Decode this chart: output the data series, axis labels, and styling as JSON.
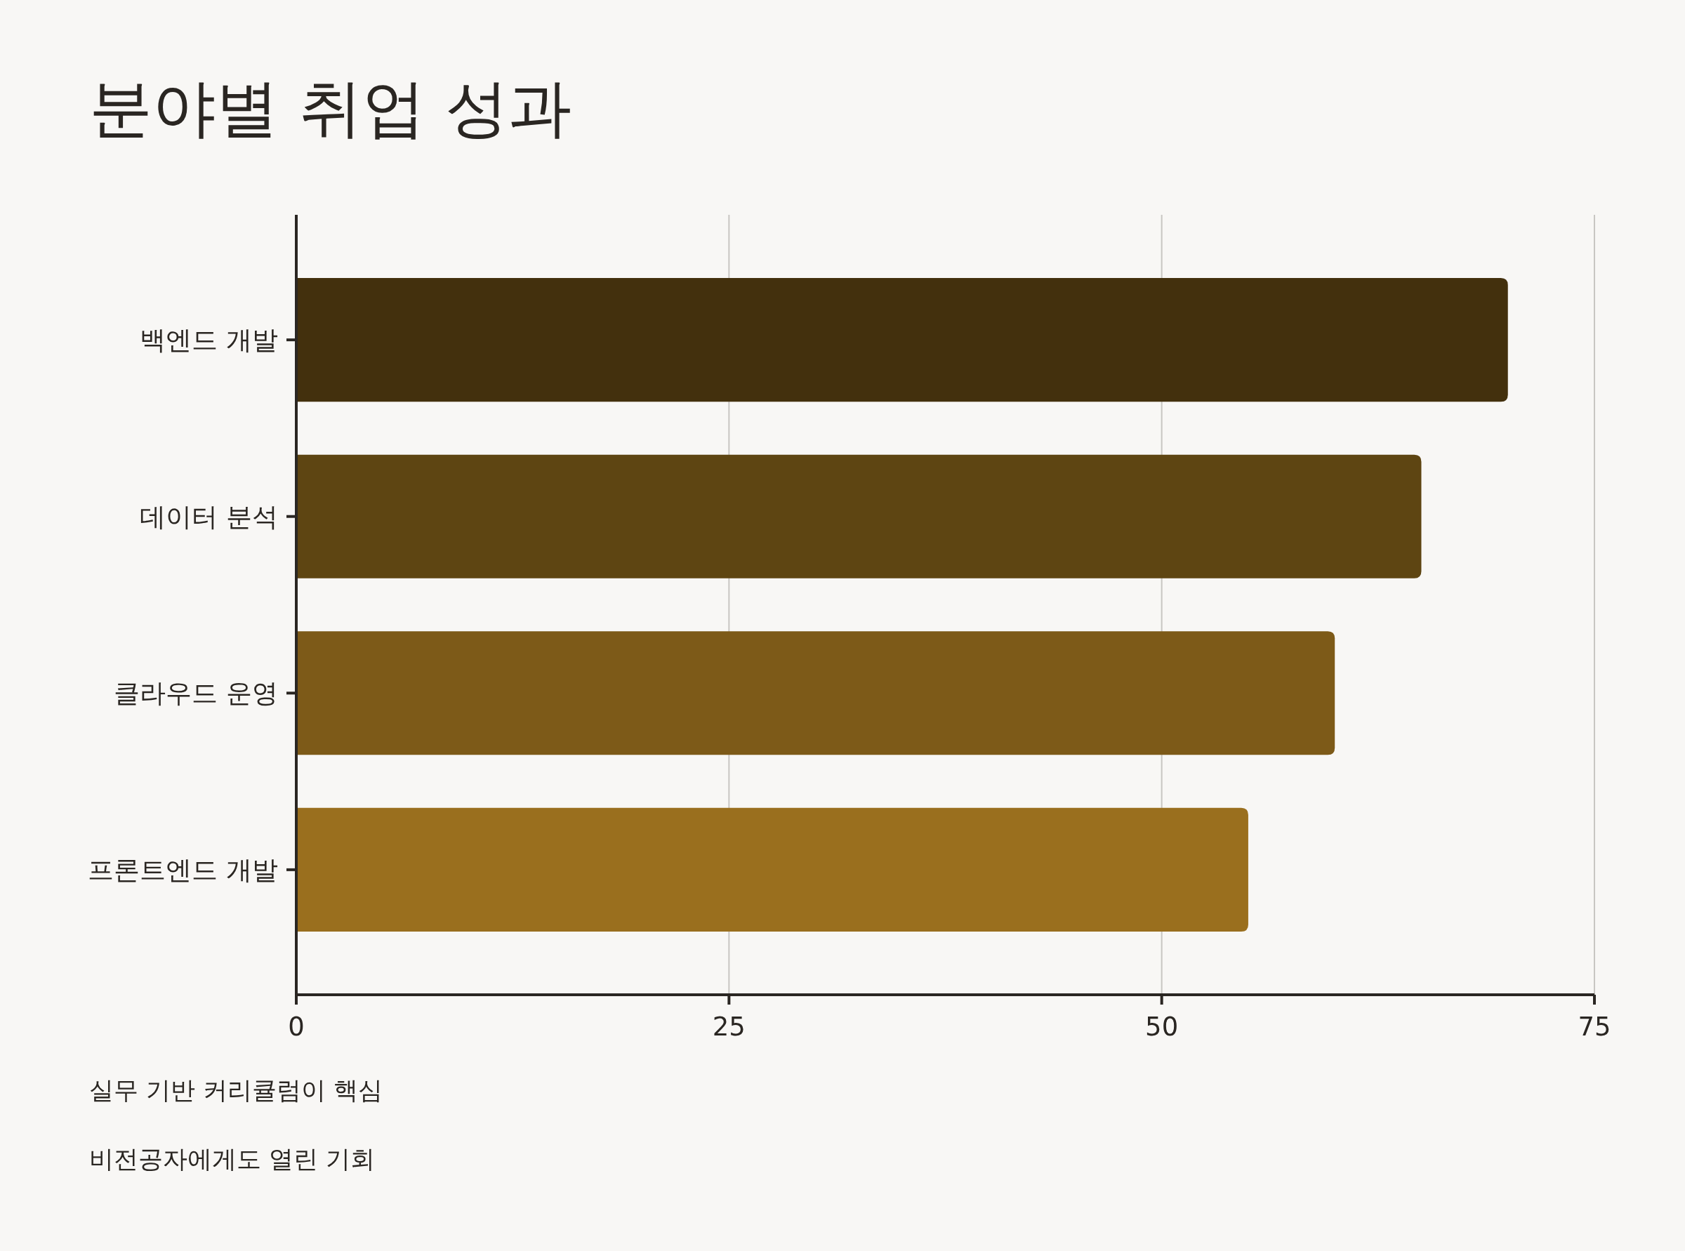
{
  "chart_data": {
    "type": "bar",
    "orientation": "horizontal",
    "title": "분야별 취업 성과",
    "categories": [
      "백엔드 개발",
      "데이터 분석",
      "클라우드 운영",
      "프론트엔드 개발"
    ],
    "values": [
      70,
      65,
      60,
      55
    ],
    "colors": [
      "#43300d",
      "#5e4512",
      "#7d5a18",
      "#9a6f1e"
    ],
    "xlim": [
      0,
      75
    ],
    "xticks": [
      0,
      25,
      50,
      75
    ],
    "grid": "x",
    "annotations": [
      "실무 기반 커리큘럼이 핵심",
      "비전공자에게도 열린 기회"
    ]
  }
}
